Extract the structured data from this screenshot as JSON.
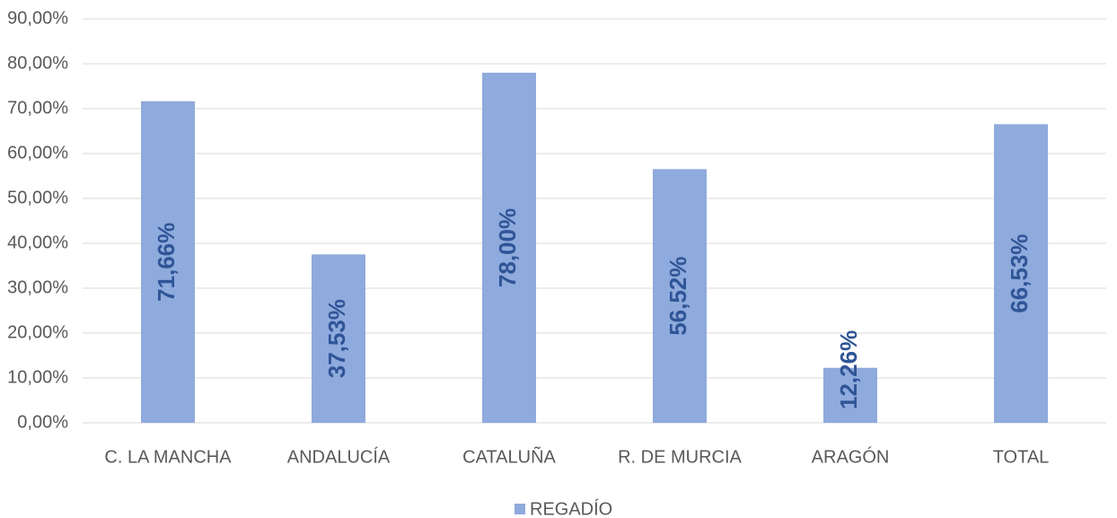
{
  "chart_data": {
    "type": "bar",
    "categories": [
      "C. LA MANCHA",
      "ANDALUCÍA",
      "CATALUÑA",
      "R. DE MURCIA",
      "ARAGÓN",
      "TOTAL"
    ],
    "series": [
      {
        "name": "REGADÍO",
        "color": "#8faadc",
        "values": [
          71.66,
          37.53,
          78.0,
          56.52,
          12.26,
          66.53
        ],
        "value_labels": [
          "71,66%",
          "37,53%",
          "78,00%",
          "56,52%",
          "12,26%",
          "66,53%"
        ]
      }
    ],
    "ylim": [
      0,
      90
    ],
    "yticks": [
      {
        "value": 0,
        "label": "0,00%"
      },
      {
        "value": 10,
        "label": "10,00%"
      },
      {
        "value": 20,
        "label": "20,00%"
      },
      {
        "value": 30,
        "label": "30,00%"
      },
      {
        "value": 40,
        "label": "40,00%"
      },
      {
        "value": 50,
        "label": "50,00%"
      },
      {
        "value": 60,
        "label": "60,00%"
      },
      {
        "value": 70,
        "label": "70,00%"
      },
      {
        "value": 80,
        "label": "80,00%"
      },
      {
        "value": 90,
        "label": "90,00%"
      }
    ],
    "grid": true,
    "legend": "bottom"
  }
}
